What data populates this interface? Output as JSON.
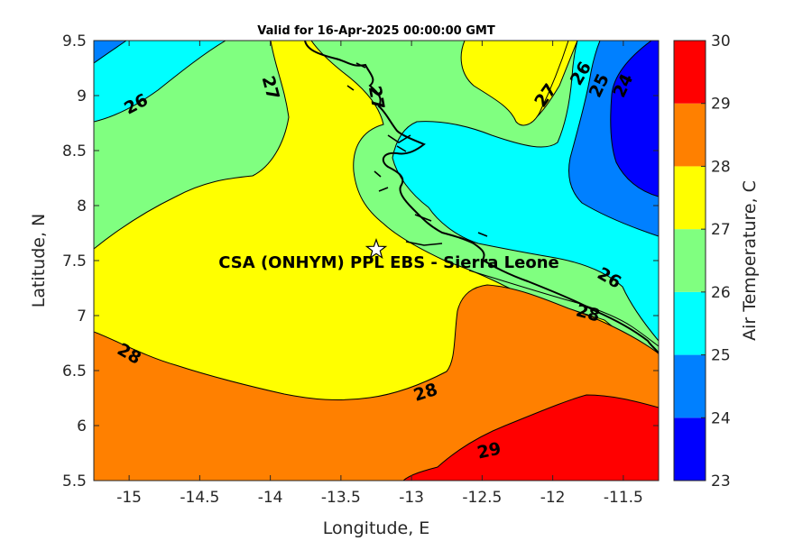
{
  "chart_data": {
    "type": "heatmap",
    "title": "Valid for 16-Apr-2025 00:00:00 GMT",
    "xlabel": "Longitude, E",
    "ylabel": "Latitude, N",
    "xlim": [
      -15.25,
      -11.25
    ],
    "ylim": [
      5.5,
      9.5
    ],
    "x_ticks": [
      -15,
      -14.5,
      -14,
      -13.5,
      -13,
      -12.5,
      -12,
      -11.5
    ],
    "x_tick_labels": [
      "-15",
      "-14.5",
      "-14",
      "-13.5",
      "-13",
      "-12.5",
      "-12",
      "-11.5"
    ],
    "y_ticks": [
      5.5,
      6,
      6.5,
      7,
      7.5,
      8,
      8.5,
      9,
      9.5
    ],
    "y_tick_labels": [
      "5.5",
      "6",
      "6.5",
      "7",
      "7.5",
      "8",
      "8.5",
      "9",
      "9.5"
    ],
    "colorbar": {
      "label": "Air Temperature, C",
      "ticks": [
        23,
        24,
        25,
        26,
        27,
        28,
        29,
        30
      ],
      "levels": [
        {
          "from": 23,
          "to": 24,
          "color": "#0000ff"
        },
        {
          "from": 24,
          "to": 25,
          "color": "#0080ff"
        },
        {
          "from": 25,
          "to": 26,
          "color": "#00ffff"
        },
        {
          "from": 26,
          "to": 27,
          "color": "#80ff80"
        },
        {
          "from": 27,
          "to": 28,
          "color": "#ffff00"
        },
        {
          "from": 28,
          "to": 29,
          "color": "#ff8000"
        },
        {
          "from": 29,
          "to": 30,
          "color": "#ff0000"
        },
        {
          "from": 30,
          "to": 31,
          "color": "#800000"
        }
      ]
    },
    "contour_labels": [
      {
        "text": "26",
        "lon": -14.95,
        "lat": 8.92,
        "angle": -28
      },
      {
        "text": "27",
        "lon": -14.0,
        "lat": 9.07,
        "angle": 75
      },
      {
        "text": "27",
        "lon": -13.25,
        "lat": 8.98,
        "angle": 80
      },
      {
        "text": "27",
        "lon": -12.05,
        "lat": 9.0,
        "angle": -55
      },
      {
        "text": "26",
        "lon": -11.8,
        "lat": 9.2,
        "angle": -60
      },
      {
        "text": "25",
        "lon": -11.67,
        "lat": 9.09,
        "angle": -65
      },
      {
        "text": "24",
        "lon": -11.5,
        "lat": 9.09,
        "angle": -65
      },
      {
        "text": "26",
        "lon": -11.6,
        "lat": 7.34,
        "angle": 30
      },
      {
        "text": "28",
        "lon": -11.75,
        "lat": 7.02,
        "angle": 15
      },
      {
        "text": "28",
        "lon": -15.0,
        "lat": 6.65,
        "angle": 30
      },
      {
        "text": "28",
        "lon": -12.9,
        "lat": 6.3,
        "angle": -18
      },
      {
        "text": "29",
        "lon": -12.45,
        "lat": 5.77,
        "angle": -12
      }
    ],
    "site": {
      "label": "CSA (ONHYM) PPL EBS  - Sierra Leone",
      "lon": -13.25,
      "lat": 7.6,
      "marker": "star"
    }
  }
}
